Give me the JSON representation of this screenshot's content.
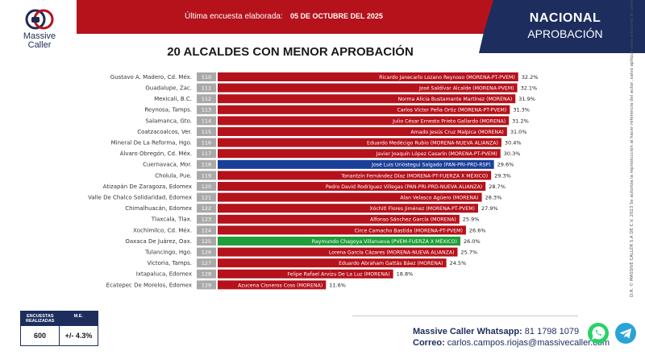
{
  "header": {
    "logo_line1": "Massive",
    "logo_line2": "Caller",
    "survey_label": "Última encuesta elaborada:",
    "survey_date": "05 DE OCTUBRE DEL 2025",
    "scope": "NACIONAL",
    "metric": "APROBACIÓN"
  },
  "chart_data": {
    "type": "bar",
    "orientation": "horizontal",
    "title": "20 ALCALDES CON MENOR APROBACIÓN",
    "value_unit": "%",
    "xlim": [
      0,
      33
    ],
    "categories": [
      "Gustavo A. Madero, Cd. Méx.",
      "Guadalupe, Zac.",
      "Mexicali, B.C.",
      "Reynosa, Tamps.",
      "Salamanca, Gto.",
      "Coatzacoalcos, Ver.",
      "Mineral De La Reforma, Hgo.",
      "Álvaro Obregón, Cd. Méx.",
      "Cuernavaca, Mor.",
      "Cholula, Pue.",
      "Atizapán De Zaragoza, Edomex",
      "Valle De Chalco Solidaridad, Edomex",
      "Chimalhuacán, Edomex",
      "Tlaxcala, Tlax.",
      "Xochimilco, Cd. Méx.",
      "Oaxaca De Juárez, Oax.",
      "Tulancingo, Hgo.",
      "Victoria, Tamps.",
      "Ixtapaluca, Edomex",
      "Ecatepec De Morelos, Edomex"
    ],
    "ranks": [
      "110",
      "111",
      "112",
      "113",
      "114",
      "115",
      "116",
      "117",
      "118",
      "119",
      "120",
      "121",
      "122",
      "123",
      "124",
      "125",
      "126",
      "127",
      "128",
      "129"
    ],
    "mayors": [
      "Ricardo Janecarlo Lozano Reynoso (MORENA-PT-PVEM)",
      "José Saldívar Alcalde (MORENA-PVEM)",
      "Norma Alicia Bustamante Martínez (MORENA)",
      "Carlos Víctor Peña Ortiz (MORENA-PT-PVEM)",
      "Julio César Ernesto Prieto Gallardo (MORENA)",
      "Amado Jesús Cruz Malpica (MORENA)",
      "Eduardo Medécigo Rubio (MORENA-NUEVA ALIANZA)",
      "Javier Joaquín López Casarín (MORENA-PT-PVEM)",
      "José Luis Urióstegui Salgado (PAN-PRI-PRD-RSP)",
      "Tonantzin Fernández Díaz (MORENA-PT-FUERZA X MÉXICO)",
      "Pedro David Rodríguez Villegas (PAN-PRI-PRD-NUEVA ALIANZA)",
      "Alan Velasco Agüero (MORENA)",
      "Xóchitl Flores Jiménez (MORENA-PT-PVEM)",
      "Alfonso Sánchez García (MORENA)",
      "Circe Camacho Bastida (MORENA-PT-PVEM)",
      "Raymundo Chagoya Villanueva (PVEM-FUERZA X MÉXICO)",
      "Lorena García Cázares (MORENA-NUEVA ALIANZA)",
      "Eduardo Abraham Gattás Báez (MORENA)",
      "Felipe Rafael Arvizu De La Luz (MORENA)",
      "Azucena Cisneros Coss (MORENA)"
    ],
    "values": [
      32.2,
      32.1,
      31.9,
      31.3,
      31.2,
      31.0,
      30.4,
      30.3,
      29.6,
      29.3,
      28.7,
      28.3,
      27.9,
      25.9,
      26.6,
      26.0,
      25.7,
      24.5,
      18.8,
      11.6
    ],
    "value_labels": [
      "32.2%",
      "32.1%",
      "31.9%",
      "31.3%",
      "31.2%",
      "31.0%",
      "30.4%",
      "30.3%",
      "29.6%",
      "29.3%",
      "28.7%",
      "28.3%",
      "27.9%",
      "25.9%",
      "26.6%",
      "26.0%",
      "25.7%",
      "24.5%",
      "18.8%",
      "11.6%"
    ],
    "bar_colors": [
      "#b5121b",
      "#b5121b",
      "#b5121b",
      "#b5121b",
      "#b5121b",
      "#b5121b",
      "#b5121b",
      "#b5121b",
      "#1a3f9a",
      "#b5121b",
      "#b5121b",
      "#b5121b",
      "#b5121b",
      "#b5121b",
      "#b5121b",
      "#1f9e3a",
      "#b5121b",
      "#b5121b",
      "#b5121b",
      "#b5121b"
    ],
    "rank_box_color": "#a9a9a9"
  },
  "side_note": "D.R. © MASSIVE CALLER S.A DE C.V. 2023 Se autoriza la reproducción al hacer referencia del autor, salvo aplique veda electoral al contenido.",
  "stats": {
    "head_sample": "ENCUESTAS REALIZADAS",
    "head_me": "M.E.",
    "sample": "600",
    "margin": "+/- 4.3%"
  },
  "contact": {
    "wa_label": "Massive Caller Whatsapp:",
    "wa_number": "81 1798 1079",
    "mail_label": "Correo:",
    "mail": "carlos.campos.riojas@massivecaller.com"
  },
  "colors": {
    "brand_red": "#b5121b",
    "brand_navy": "#1c2d5e",
    "highlight_blue": "#1a3f9a",
    "highlight_green": "#1f9e3a"
  }
}
